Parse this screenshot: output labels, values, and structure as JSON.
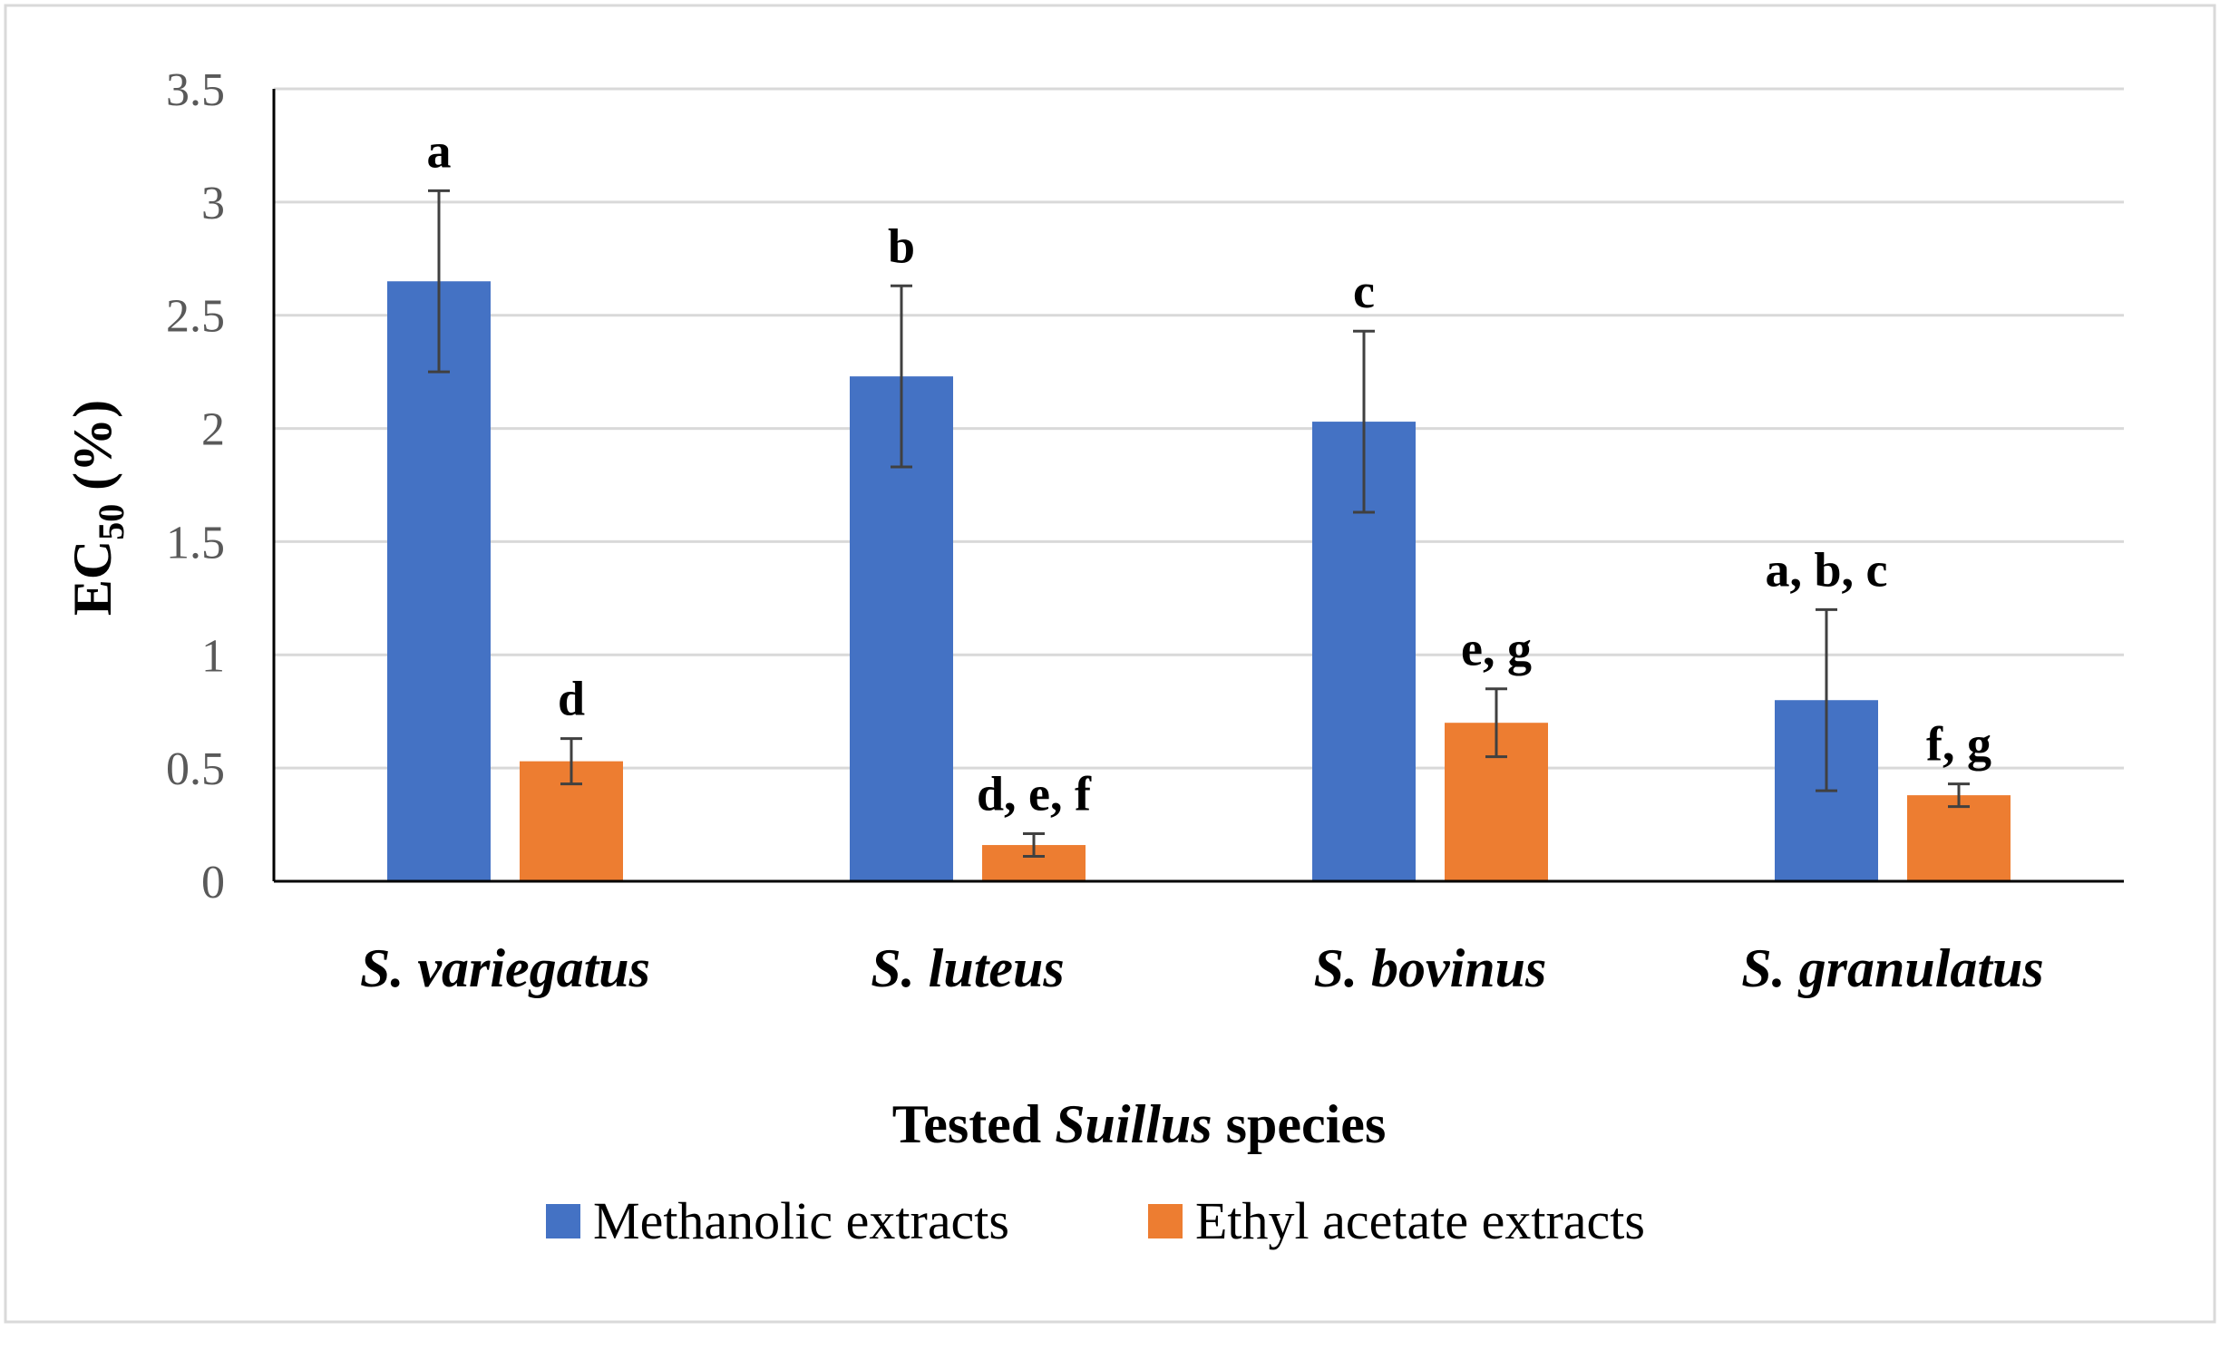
{
  "chart_data": {
    "type": "bar",
    "title": "",
    "ylabel": {
      "main": "EC",
      "sub": "50",
      "suffix": " (%)"
    },
    "xlabel": {
      "prefix": "Tested ",
      "italic": "Suillus",
      "suffix": " species"
    },
    "ylim": [
      0,
      3.5
    ],
    "yticks": [
      0,
      0.5,
      1,
      1.5,
      2,
      2.5,
      3,
      3.5
    ],
    "ytick_labels": [
      "0",
      "0.5",
      "1",
      "1.5",
      "2",
      "2.5",
      "3",
      "3.5"
    ],
    "grid": true,
    "legend_position": "bottom",
    "categories": [
      "S. variegatus",
      "S. luteus",
      "S. bovinus",
      "S. granulatus"
    ],
    "series": [
      {
        "name": "Methanolic extracts",
        "color": "#4472C4",
        "values": [
          2.65,
          2.23,
          2.03,
          0.8
        ],
        "errors": [
          0.4,
          0.4,
          0.4,
          0.4
        ],
        "labels": [
          "a",
          "b",
          "c",
          "a, b, c"
        ]
      },
      {
        "name": "Ethyl acetate extracts",
        "color": "#ED7D31",
        "values": [
          0.53,
          0.16,
          0.7,
          0.38
        ],
        "errors": [
          0.1,
          0.05,
          0.15,
          0.05
        ],
        "labels": [
          "d",
          "d, e, f",
          "e, g",
          "f, g"
        ]
      }
    ]
  },
  "colors": {
    "grid": "#D9D9D9",
    "axis": "#000000",
    "error_bar": "#404040",
    "frame": "#D9D9D9"
  }
}
